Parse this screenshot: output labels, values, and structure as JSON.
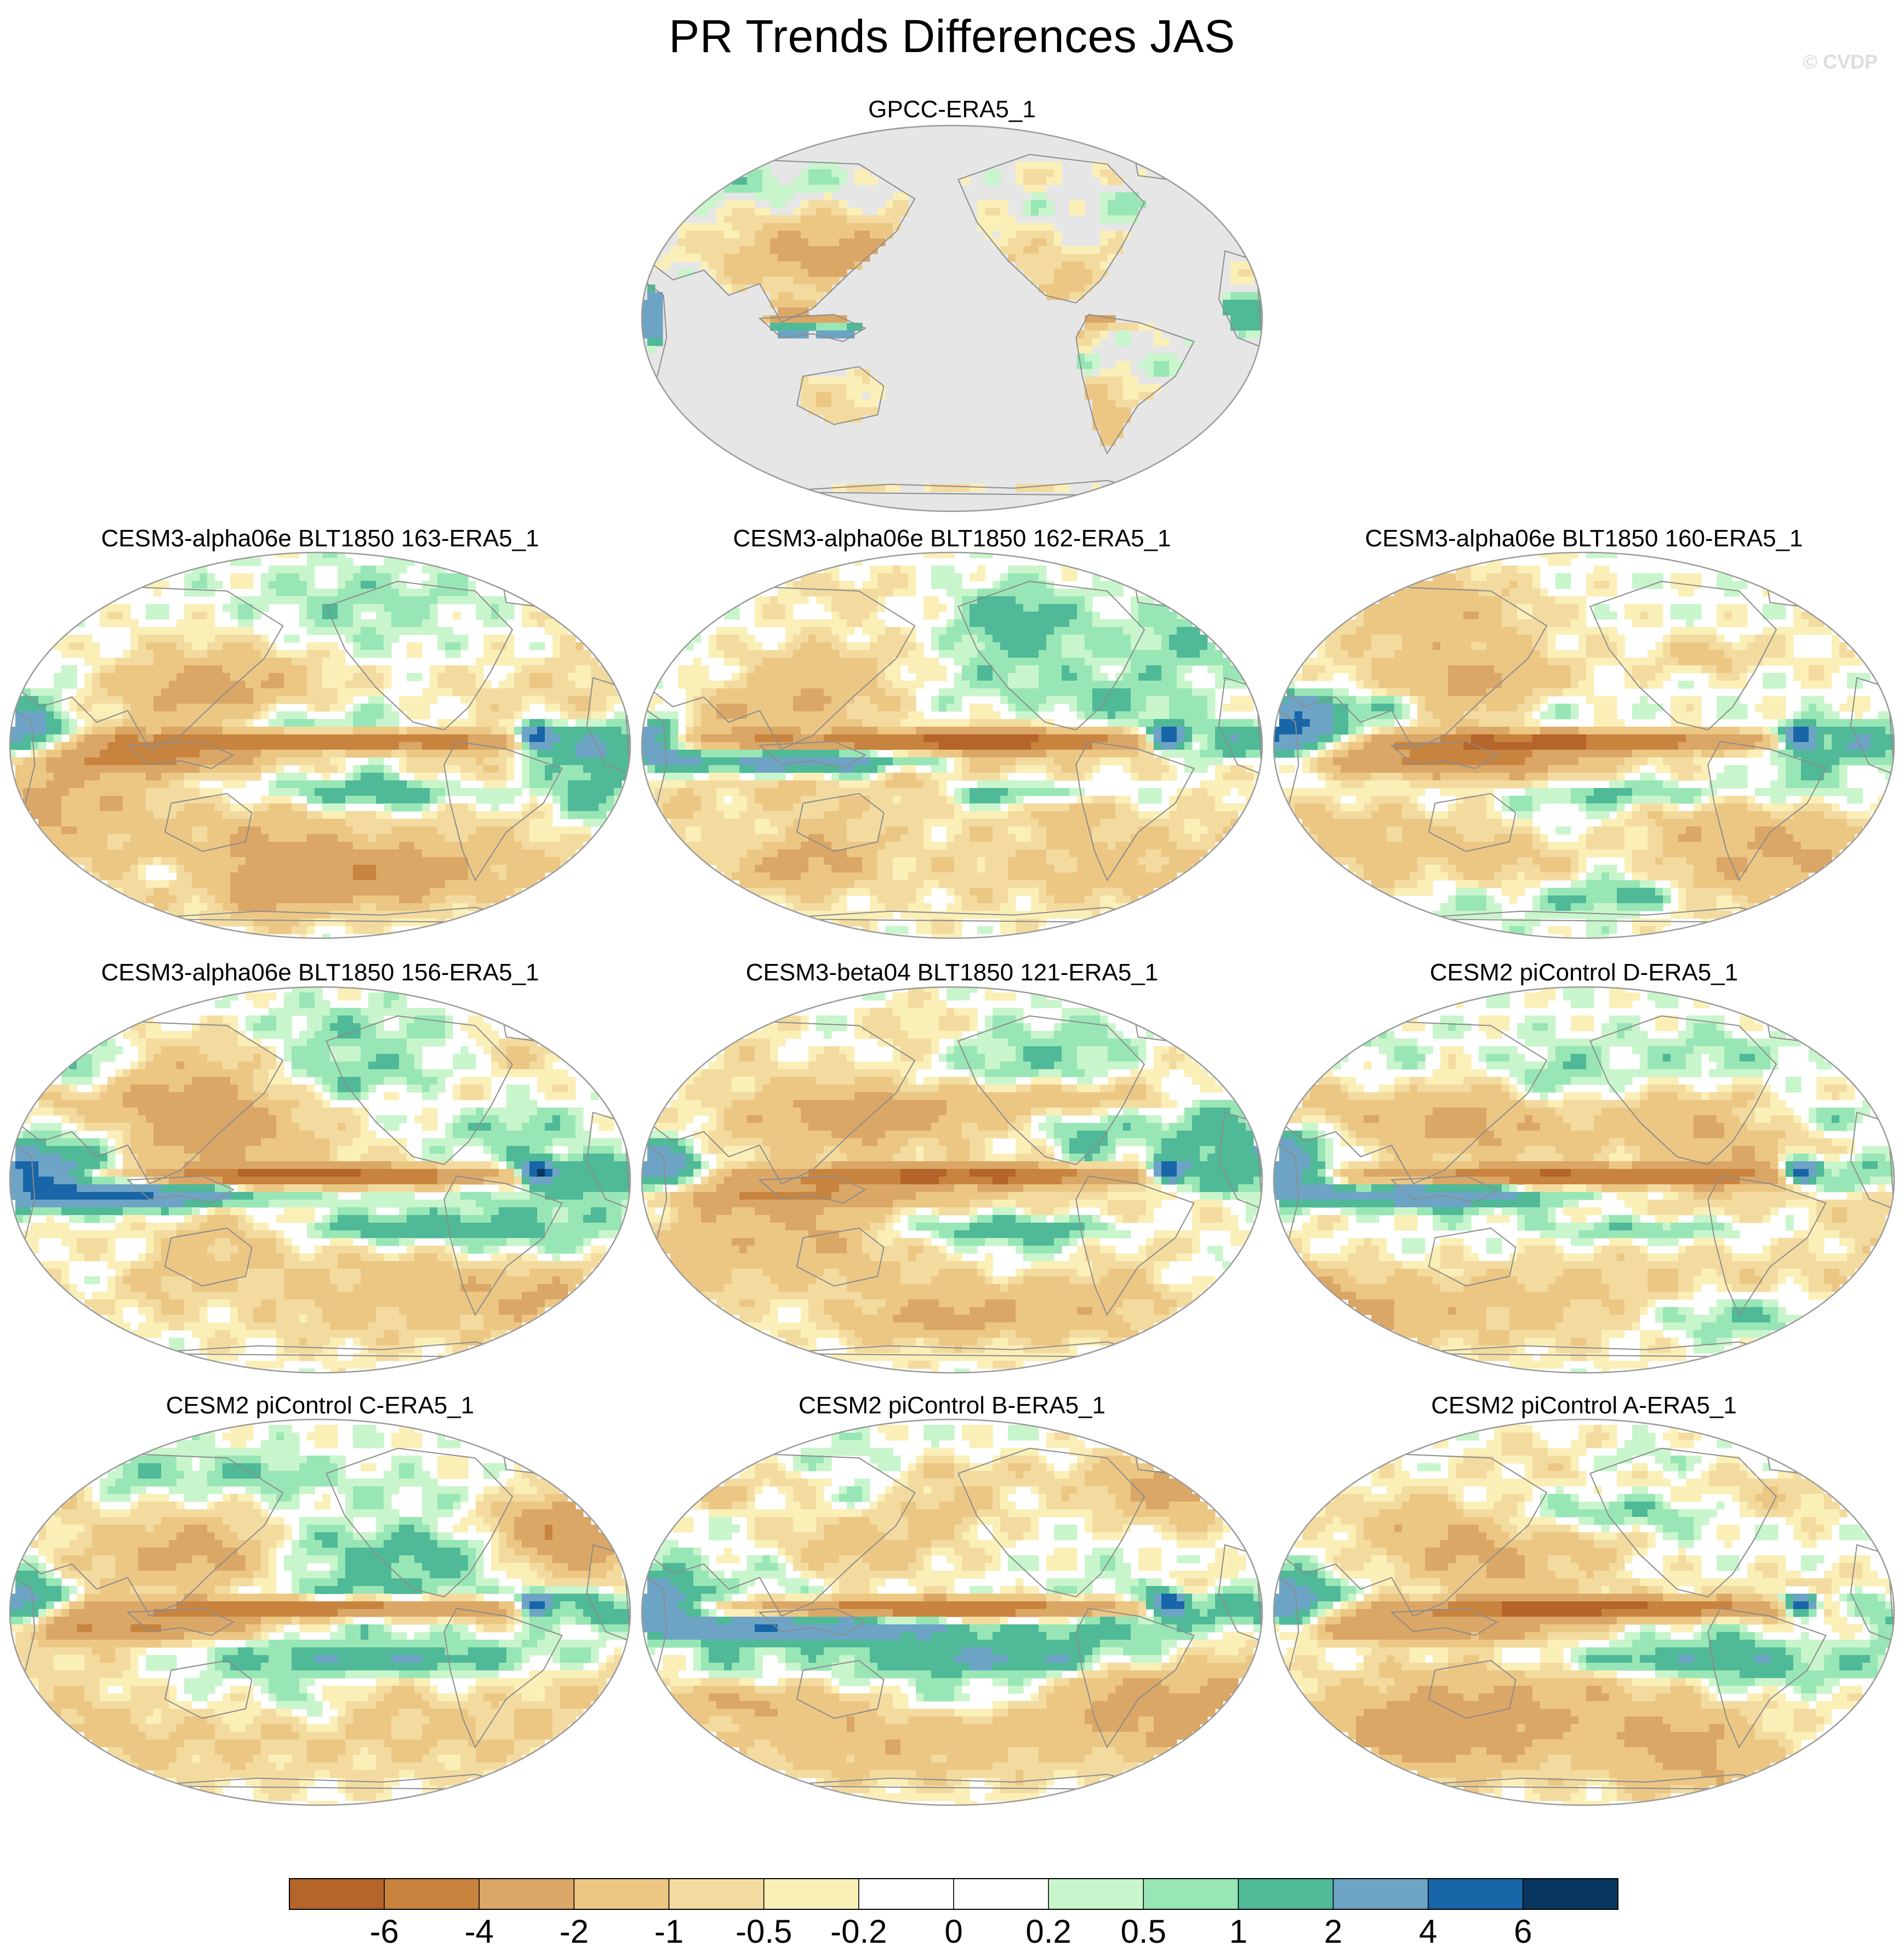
{
  "figure": {
    "title": "PR Trends Differences JAS",
    "watermark": "© CVDP"
  },
  "chart_data": {
    "type": "heatmap",
    "projection": "Robinson (Pacific-centered)",
    "variable": "PR",
    "season": "JAS",
    "panels": [
      {
        "title": "GPCC-ERA5_1",
        "coverage": "land-only, ocean masked grey",
        "seed": 11
      },
      {
        "title": "CESM3-alpha06e BLT1850 163-ERA5_1",
        "coverage": "global",
        "seed": 23
      },
      {
        "title": "CESM3-alpha06e BLT1850 162-ERA5_1",
        "coverage": "global",
        "seed": 37
      },
      {
        "title": "CESM3-alpha06e BLT1850 160-ERA5_1",
        "coverage": "global",
        "seed": 41
      },
      {
        "title": "CESM3-alpha06e BLT1850 156-ERA5_1",
        "coverage": "global",
        "seed": 53
      },
      {
        "title": "CESM3-beta04 BLT1850 121-ERA5_1",
        "coverage": "global",
        "seed": 67
      },
      {
        "title": "CESM2 piControl D-ERA5_1",
        "coverage": "global",
        "seed": 71
      },
      {
        "title": "CESM2 piControl C-ERA5_1",
        "coverage": "global",
        "seed": 83
      },
      {
        "title": "CESM2 piControl B-ERA5_1",
        "coverage": "global",
        "seed": 97
      },
      {
        "title": "CESM2 piControl A-ERA5_1",
        "coverage": "global",
        "seed": 101
      }
    ],
    "colorbar": {
      "tick_labels": [
        "-6",
        "-4",
        "-2",
        "-1",
        "-0.5",
        "-0.2",
        "0",
        "0.2",
        "0.5",
        "1",
        "2",
        "4",
        "6"
      ],
      "levels": [
        -6,
        -4,
        -2,
        -1,
        -0.5,
        -0.2,
        0,
        0.2,
        0.5,
        1,
        2,
        4,
        6
      ],
      "colors": [
        "#b5642a",
        "#c8843f",
        "#dba766",
        "#ecc784",
        "#f3dba0",
        "#fbefb8",
        "#ffffff",
        "#ffffff",
        "#c9f5cc",
        "#98e6b5",
        "#4fb998",
        "#6da4c6",
        "#1865a8",
        "#07375e"
      ]
    },
    "colors": {
      "mask": "#e6e6e6",
      "coastline": "#8c8c8c",
      "outline": "#9a9a9a"
    }
  }
}
